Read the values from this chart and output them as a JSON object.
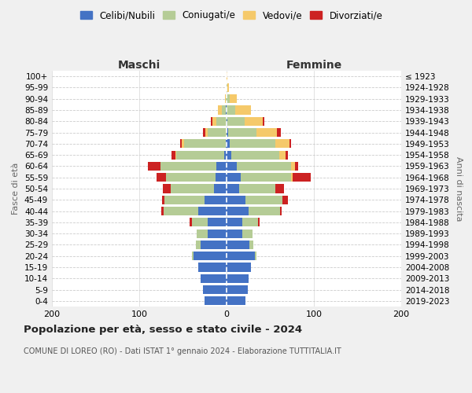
{
  "age_groups": [
    "100+",
    "95-99",
    "90-94",
    "85-89",
    "80-84",
    "75-79",
    "70-74",
    "65-69",
    "60-64",
    "55-59",
    "50-54",
    "45-49",
    "40-44",
    "35-39",
    "30-34",
    "25-29",
    "20-24",
    "15-19",
    "10-14",
    "5-9",
    "0-4"
  ],
  "birth_years": [
    "≤ 1923",
    "1924-1928",
    "1929-1933",
    "1934-1938",
    "1939-1943",
    "1944-1948",
    "1949-1953",
    "1954-1958",
    "1959-1963",
    "1964-1968",
    "1969-1973",
    "1974-1978",
    "1979-1983",
    "1984-1988",
    "1989-1993",
    "1994-1998",
    "1999-2003",
    "2004-2008",
    "2009-2013",
    "2014-2018",
    "2019-2023"
  ],
  "colors": {
    "celibi": "#4472c4",
    "coniugati": "#b5cc96",
    "vedovi": "#f5c96a",
    "divorziati": "#cc2222"
  },
  "males": {
    "celibi": [
      0,
      0,
      0,
      1,
      0,
      0,
      1,
      3,
      12,
      13,
      14,
      25,
      32,
      22,
      22,
      30,
      38,
      32,
      30,
      27,
      25
    ],
    "coniugati": [
      0,
      0,
      1,
      4,
      12,
      22,
      48,
      55,
      64,
      56,
      50,
      46,
      40,
      18,
      12,
      5,
      2,
      0,
      0,
      0,
      0
    ],
    "vedovi": [
      0,
      0,
      1,
      5,
      4,
      2,
      2,
      1,
      0,
      0,
      0,
      0,
      0,
      0,
      0,
      0,
      0,
      0,
      0,
      0,
      0
    ],
    "divorziati": [
      0,
      0,
      0,
      0,
      2,
      3,
      2,
      4,
      14,
      11,
      9,
      3,
      3,
      2,
      0,
      0,
      0,
      0,
      0,
      0,
      0
    ]
  },
  "females": {
    "celibi": [
      0,
      0,
      0,
      0,
      1,
      2,
      4,
      5,
      12,
      16,
      14,
      22,
      25,
      18,
      18,
      26,
      32,
      28,
      25,
      24,
      22
    ],
    "coniugati": [
      0,
      1,
      4,
      10,
      20,
      32,
      52,
      55,
      62,
      58,
      42,
      42,
      36,
      18,
      12,
      5,
      2,
      0,
      0,
      0,
      0
    ],
    "vedovi": [
      1,
      2,
      8,
      18,
      20,
      24,
      16,
      8,
      4,
      2,
      0,
      0,
      0,
      0,
      0,
      0,
      0,
      0,
      0,
      0,
      0
    ],
    "divorziati": [
      0,
      0,
      0,
      0,
      2,
      4,
      2,
      2,
      4,
      20,
      10,
      6,
      2,
      2,
      0,
      0,
      0,
      0,
      0,
      0,
      0
    ]
  },
  "title": "Popolazione per età, sesso e stato civile - 2024",
  "subtitle": "COMUNE DI LOREO (RO) - Dati ISTAT 1° gennaio 2024 - Elaborazione TUTTITALIA.IT",
  "xlabel_left": "Maschi",
  "xlabel_right": "Femmine",
  "ylabel_left": "Fasce di età",
  "ylabel_right": "Anni di nascita",
  "xlim": 200,
  "bg_color": "#f0f0f0",
  "plot_bg": "#ffffff",
  "grid_color": "#cccccc"
}
